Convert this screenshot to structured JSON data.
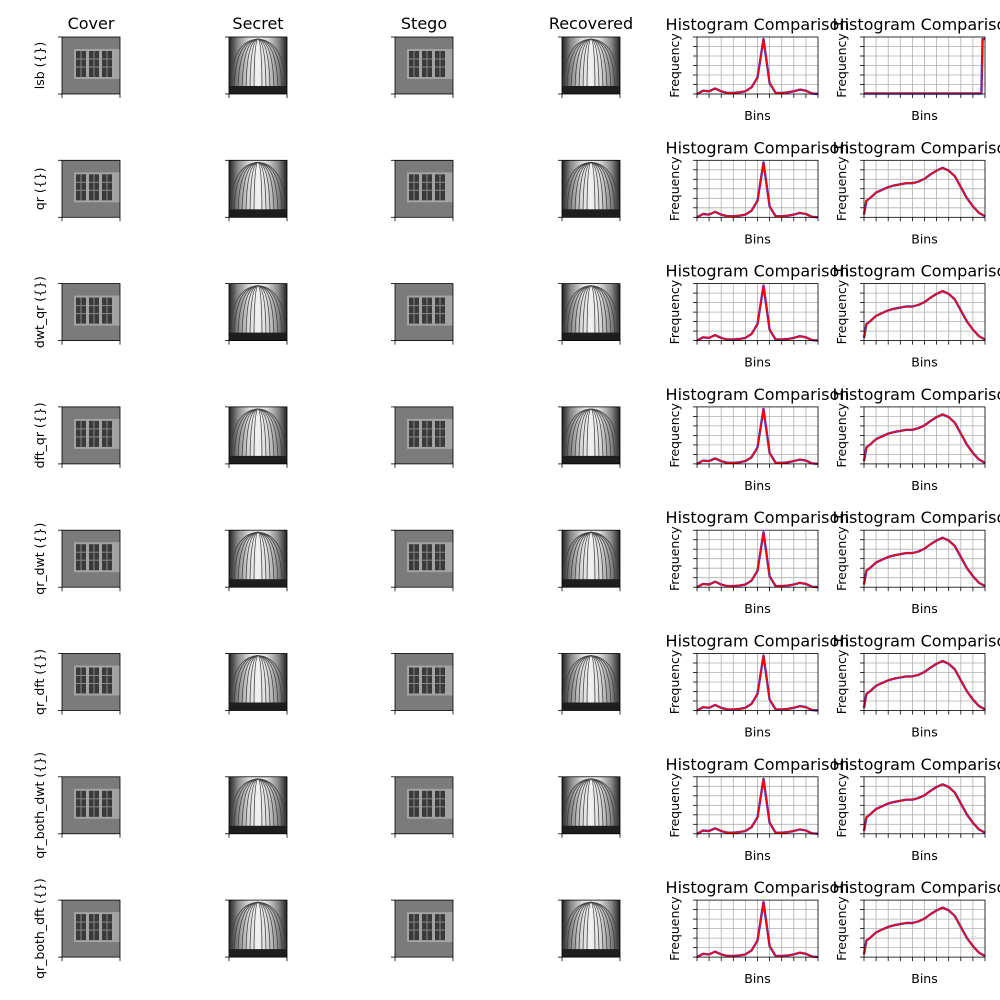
{
  "figure": {
    "column_titles": [
      "Cover",
      "Secret",
      "Stego",
      "Recovered"
    ],
    "row_labels": [
      "lsb ({})",
      "qr ({})",
      "dwt_qr ({})",
      "dft_qr ({})",
      "qr_dwt ({})",
      "qr_dft ({})",
      "qr_both_dwt ({})",
      "qr_both_dft ({})"
    ],
    "image_panels": {
      "cover": "building facade with four windows (grayscale)",
      "secret": "cathedral nave interior (grayscale)",
      "stego": "building facade with four windows (grayscale)",
      "recovered": "cathedral nave interior (grayscale)"
    }
  },
  "chart_data": [
    {
      "type": "line",
      "title": "Histogram Comparison",
      "xlabel": "Bins",
      "ylabel": "Frequency",
      "grid": true,
      "applies_to": "column 5 (cover vs stego), rows 1-8",
      "x_ticklabels_shown": false,
      "y_ticklabels_shown": false,
      "series": [
        {
          "color": "#1f3fff",
          "description": "cover histogram (overlapped by red)",
          "x": [
            0,
            5,
            10,
            15,
            20,
            25,
            30,
            35,
            40,
            45,
            50,
            55,
            60,
            65,
            70,
            75,
            80,
            85,
            90,
            95,
            100
          ],
          "y": [
            0,
            0.06,
            0.05,
            0.1,
            0.05,
            0.02,
            0.02,
            0.03,
            0.05,
            0.12,
            0.3,
            1.0,
            0.2,
            0.02,
            0.02,
            0.03,
            0.05,
            0.08,
            0.06,
            0.01,
            0.0
          ]
        },
        {
          "color": "#ff0000",
          "description": "stego histogram",
          "x": [
            0,
            5,
            10,
            15,
            20,
            25,
            30,
            35,
            40,
            45,
            50,
            55,
            60,
            65,
            70,
            75,
            80,
            85,
            90,
            95,
            100
          ],
          "y": [
            0,
            0.06,
            0.05,
            0.1,
            0.05,
            0.02,
            0.02,
            0.03,
            0.05,
            0.12,
            0.3,
            1.0,
            0.2,
            0.02,
            0.02,
            0.03,
            0.05,
            0.08,
            0.06,
            0.01,
            0.0
          ]
        }
      ]
    },
    {
      "type": "line",
      "title": "Histogram Comparison",
      "xlabel": "Bins",
      "ylabel": "Frequency",
      "grid": true,
      "applies_to": "column 6 row 1 (lsb)",
      "x_ticklabels_shown": false,
      "y_ticklabels_shown": false,
      "series": [
        {
          "color": "#1f3fff",
          "description": "secret histogram (overlapped by red)",
          "x": [
            0,
            10,
            20,
            30,
            40,
            50,
            60,
            70,
            80,
            90,
            97,
            98,
            100
          ],
          "y": [
            0.01,
            0.01,
            0.01,
            0.01,
            0.01,
            0.01,
            0.01,
            0.01,
            0.01,
            0.01,
            0.01,
            1.0,
            1.0
          ]
        },
        {
          "color": "#ff0000",
          "description": "recovered histogram",
          "x": [
            0,
            10,
            20,
            30,
            40,
            50,
            60,
            70,
            80,
            90,
            97,
            98,
            100
          ],
          "y": [
            0.01,
            0.01,
            0.01,
            0.01,
            0.01,
            0.01,
            0.01,
            0.01,
            0.01,
            0.01,
            0.01,
            1.0,
            1.0
          ]
        }
      ]
    },
    {
      "type": "line",
      "title": "Histogram Comparison",
      "xlabel": "Bins",
      "ylabel": "Frequency",
      "grid": true,
      "applies_to": "column 6 rows 2-8",
      "x_ticklabels_shown": false,
      "y_ticklabels_shown": false,
      "series": [
        {
          "color": "#1f3fff",
          "description": "secret histogram (overlapped by red)",
          "x": [
            0,
            2,
            5,
            10,
            15,
            20,
            25,
            30,
            35,
            40,
            45,
            50,
            55,
            60,
            65,
            70,
            75,
            80,
            85,
            90,
            95,
            100
          ],
          "y": [
            0.05,
            0.3,
            0.35,
            0.45,
            0.5,
            0.55,
            0.58,
            0.6,
            0.62,
            0.62,
            0.65,
            0.7,
            0.78,
            0.85,
            0.9,
            0.85,
            0.75,
            0.55,
            0.35,
            0.2,
            0.08,
            0.02
          ]
        },
        {
          "color": "#ff0000",
          "description": "recovered histogram",
          "x": [
            0,
            2,
            5,
            10,
            15,
            20,
            25,
            30,
            35,
            40,
            45,
            50,
            55,
            60,
            65,
            70,
            75,
            80,
            85,
            90,
            95,
            100
          ],
          "y": [
            0.05,
            0.3,
            0.35,
            0.45,
            0.5,
            0.55,
            0.58,
            0.6,
            0.62,
            0.62,
            0.65,
            0.7,
            0.78,
            0.85,
            0.9,
            0.85,
            0.75,
            0.55,
            0.35,
            0.2,
            0.08,
            0.02
          ]
        }
      ]
    }
  ]
}
